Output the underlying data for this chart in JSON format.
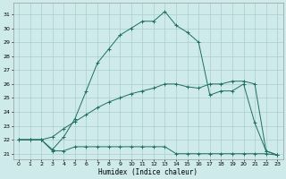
{
  "xlabel": "Humidex (Indice chaleur)",
  "background_color": "#ceeaea",
  "grid_color": "#aacece",
  "line_color": "#1e7060",
  "x_ticks": [
    0,
    1,
    2,
    3,
    4,
    5,
    6,
    7,
    8,
    9,
    10,
    11,
    12,
    13,
    14,
    15,
    16,
    17,
    18,
    19,
    20,
    21,
    22,
    23
  ],
  "y_ticks": [
    21,
    22,
    23,
    24,
    25,
    26,
    27,
    28,
    29,
    30,
    31
  ],
  "ylim": [
    20.6,
    31.8
  ],
  "xlim": [
    -0.5,
    23.5
  ],
  "series": [
    {
      "x": [
        0,
        1,
        2,
        3,
        4,
        5,
        6,
        7,
        8,
        9,
        10,
        11,
        12,
        13,
        14,
        15,
        16,
        17,
        18,
        19,
        20,
        21,
        22,
        23
      ],
      "y": [
        22,
        22,
        22,
        21.3,
        22.2,
        23.5,
        25.5,
        27.5,
        28.5,
        29.5,
        30,
        30.5,
        30.5,
        31.2,
        30.2,
        29.7,
        29,
        25.2,
        25.5,
        25.5,
        26,
        23.2,
        21.2,
        20.9
      ]
    },
    {
      "x": [
        0,
        1,
        2,
        3,
        4,
        5,
        6,
        7,
        8,
        9,
        10,
        11,
        12,
        13,
        14,
        15,
        16,
        17,
        18,
        19,
        20,
        21,
        22,
        23
      ],
      "y": [
        22,
        22,
        22,
        22.2,
        22.8,
        23.3,
        23.8,
        24.3,
        24.7,
        25,
        25.3,
        25.5,
        25.7,
        26,
        26,
        25.8,
        25.7,
        26,
        26,
        26.2,
        26.2,
        26.0,
        21.2,
        20.9
      ]
    },
    {
      "x": [
        0,
        1,
        2,
        3,
        4,
        5,
        6,
        7,
        8,
        9,
        10,
        11,
        12,
        13,
        14,
        15,
        16,
        17,
        18,
        19,
        20,
        21,
        22,
        23
      ],
      "y": [
        22,
        22,
        22,
        21.2,
        21.2,
        21.5,
        21.5,
        21.5,
        21.5,
        21.5,
        21.5,
        21.5,
        21.5,
        21.5,
        21.0,
        21.0,
        21.0,
        21.0,
        21.0,
        21.0,
        21.0,
        21.0,
        21.0,
        20.9
      ]
    }
  ]
}
